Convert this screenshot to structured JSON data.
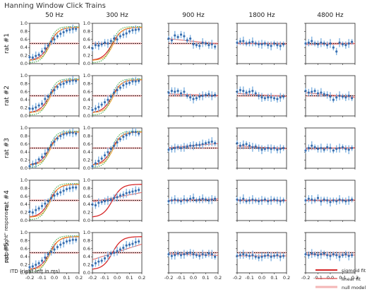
{
  "figure": {
    "title": "Hanning Window Click Trains",
    "xlabel": "ITD (right-left in ms)",
    "ylabel": "prop \"Right\" responses"
  },
  "legend": {
    "sigmoid": {
      "label": "sigmoid fit",
      "color": "#d62728"
    },
    "linear": {
      "label": "linear fit",
      "color": "#e06666"
    },
    "null": {
      "label": "null model",
      "color": "#f4b6b6"
    }
  },
  "colors": {
    "sigmoid": "#d62728",
    "linear": "#e06666",
    "null": "#f7c6c6",
    "orange_fit": "#f0a030",
    "green_fit": "#2ca02c",
    "points": "#3a6fb0",
    "points_light": "#7fb2e0"
  },
  "chart_data": {
    "type": "scatter",
    "title": "Hanning Window Click Trains",
    "xlabel": "ITD (right-left in ms)",
    "ylabel": "prop \"Right\" responses",
    "columns": [
      "50 Hz",
      "300 Hz",
      "900 Hz",
      "1800 Hz",
      "4800 Hz"
    ],
    "rows": [
      "rat #1",
      "rat #2",
      "rat #3",
      "rat #4",
      "rat #5"
    ],
    "x": [
      -0.2,
      -0.175,
      -0.15,
      -0.125,
      -0.1,
      -0.075,
      -0.05,
      -0.025,
      0.0,
      0.025,
      0.05,
      0.075,
      0.1,
      0.125,
      0.15,
      0.175
    ],
    "xlim": [
      -0.2,
      0.2
    ],
    "ylim": [
      0.0,
      1.0
    ],
    "x_ticks": [
      "-0.2",
      "-0.1",
      "0.0",
      "0.1",
      "0.2"
    ],
    "y_ticks": [
      "0.0",
      "0.2",
      "0.4",
      "0.6",
      "0.8",
      "1.0"
    ],
    "reference_line": 0.5,
    "panels": [
      [
        {
          "values": [
            0.16,
            0.15,
            0.19,
            0.22,
            0.3,
            0.38,
            0.45,
            0.55,
            0.6,
            0.68,
            0.74,
            0.78,
            0.82,
            0.84,
            0.86,
            0.86
          ],
          "curves": [
            "sigmoid",
            "orange",
            "green"
          ]
        },
        {
          "values": [
            0.38,
            0.46,
            0.45,
            0.48,
            0.52,
            0.5,
            0.56,
            0.62,
            0.6,
            0.68,
            0.72,
            0.75,
            0.8,
            0.83,
            0.84,
            0.85
          ],
          "curves": [
            "sigmoid",
            "orange",
            "green"
          ]
        },
        {
          "values": [
            0.62,
            0.58,
            0.7,
            0.66,
            0.72,
            0.68,
            0.58,
            0.62,
            0.48,
            0.46,
            0.44,
            0.52,
            0.5,
            0.46,
            0.48,
            0.42
          ],
          "curves": [
            "linear"
          ]
        },
        {
          "values": [
            0.52,
            0.55,
            0.56,
            0.5,
            0.52,
            0.54,
            0.5,
            0.48,
            0.48,
            0.5,
            0.46,
            0.44,
            0.5,
            0.46,
            0.44,
            0.48
          ],
          "curves": [
            "linear"
          ]
        },
        {
          "values": [
            0.5,
            0.52,
            0.56,
            0.5,
            0.48,
            0.52,
            0.5,
            0.46,
            0.5,
            0.4,
            0.3,
            0.52,
            0.48,
            0.46,
            0.5,
            0.54
          ],
          "curves": [
            "linear"
          ]
        }
      ],
      [
        {
          "values": [
            0.18,
            0.18,
            0.21,
            0.26,
            0.3,
            0.42,
            0.48,
            0.58,
            0.64,
            0.72,
            0.78,
            0.8,
            0.84,
            0.86,
            0.88,
            0.87
          ],
          "curves": [
            "sigmoid",
            "orange",
            "green"
          ]
        },
        {
          "values": [
            0.15,
            0.18,
            0.22,
            0.28,
            0.34,
            0.4,
            0.48,
            0.58,
            0.64,
            0.7,
            0.76,
            0.8,
            0.82,
            0.86,
            0.86,
            0.87
          ],
          "curves": [
            "sigmoid",
            "orange",
            "green"
          ]
        },
        {
          "values": [
            0.58,
            0.62,
            0.6,
            0.62,
            0.56,
            0.6,
            0.5,
            0.46,
            0.42,
            0.44,
            0.48,
            0.5,
            0.52,
            0.54,
            0.5,
            0.52
          ],
          "curves": [
            "linear"
          ]
        },
        {
          "values": [
            0.6,
            0.64,
            0.62,
            0.58,
            0.6,
            0.62,
            0.56,
            0.5,
            0.46,
            0.44,
            0.46,
            0.46,
            0.44,
            0.42,
            0.46,
            0.48
          ],
          "curves": [
            "linear"
          ]
        },
        {
          "values": [
            0.62,
            0.58,
            0.6,
            0.62,
            0.56,
            0.58,
            0.54,
            0.52,
            0.48,
            0.4,
            0.46,
            0.5,
            0.48,
            0.46,
            0.5,
            0.44
          ],
          "curves": [
            "linear"
          ]
        }
      ],
      [
        {
          "values": [
            0.05,
            0.1,
            0.12,
            0.22,
            0.28,
            0.36,
            0.46,
            0.58,
            0.66,
            0.74,
            0.8,
            0.84,
            0.86,
            0.88,
            0.88,
            0.86
          ],
          "curves": [
            "sigmoid",
            "orange",
            "green"
          ]
        },
        {
          "values": [
            0.05,
            0.12,
            0.18,
            0.24,
            0.32,
            0.4,
            0.48,
            0.56,
            0.64,
            0.72,
            0.78,
            0.82,
            0.86,
            0.9,
            0.9,
            0.86
          ],
          "curves": [
            "sigmoid",
            "orange",
            "green"
          ]
        },
        {
          "values": [
            0.46,
            0.48,
            0.5,
            0.52,
            0.5,
            0.52,
            0.54,
            0.56,
            0.56,
            0.58,
            0.58,
            0.6,
            0.62,
            0.64,
            0.66,
            0.62
          ],
          "curves": [
            "linear"
          ]
        },
        {
          "values": [
            0.62,
            0.56,
            0.58,
            0.6,
            0.56,
            0.52,
            0.54,
            0.5,
            0.46,
            0.48,
            0.5,
            0.48,
            0.5,
            0.46,
            0.48,
            0.5
          ],
          "curves": [
            "linear"
          ]
        },
        {
          "values": [
            0.44,
            0.5,
            0.56,
            0.52,
            0.48,
            0.5,
            0.46,
            0.52,
            0.5,
            0.44,
            0.48,
            0.5,
            0.52,
            0.48,
            0.46,
            0.5
          ],
          "curves": [
            "linear"
          ]
        }
      ],
      [
        {
          "values": [
            0.22,
            0.2,
            0.26,
            0.3,
            0.36,
            0.42,
            0.48,
            0.56,
            0.62,
            0.66,
            0.7,
            0.74,
            0.78,
            0.8,
            0.82,
            0.82
          ],
          "curves": [
            "sigmoid",
            "orange",
            "green"
          ]
        },
        {
          "values": [
            0.4,
            0.38,
            0.44,
            0.46,
            0.48,
            0.5,
            0.52,
            0.56,
            0.58,
            0.62,
            0.64,
            0.68,
            0.7,
            0.72,
            0.74,
            0.76
          ],
          "curves": [
            "sigmoid",
            "linear"
          ]
        },
        {
          "values": [
            0.48,
            0.5,
            0.52,
            0.5,
            0.48,
            0.52,
            0.5,
            0.54,
            0.56,
            0.5,
            0.52,
            0.54,
            0.52,
            0.5,
            0.52,
            0.54
          ],
          "curves": [
            "linear"
          ]
        },
        {
          "values": [
            0.52,
            0.5,
            0.54,
            0.48,
            0.5,
            0.52,
            0.5,
            0.48,
            0.5,
            0.52,
            0.48,
            0.5,
            0.52,
            0.5,
            0.48,
            0.5
          ],
          "curves": [
            "linear"
          ]
        },
        {
          "values": [
            0.5,
            0.54,
            0.52,
            0.5,
            0.56,
            0.48,
            0.52,
            0.5,
            0.46,
            0.5,
            0.48,
            0.52,
            0.5,
            0.48,
            0.5,
            0.52
          ],
          "curves": [
            "linear"
          ]
        }
      ],
      [
        {
          "values": [
            0.14,
            0.16,
            0.2,
            0.24,
            0.3,
            0.38,
            0.46,
            0.52,
            0.58,
            0.64,
            0.7,
            0.74,
            0.78,
            0.8,
            0.82,
            0.82
          ],
          "curves": [
            "sigmoid",
            "orange",
            "green"
          ]
        },
        {
          "values": [
            0.18,
            0.24,
            0.28,
            0.3,
            0.36,
            0.42,
            0.48,
            0.5,
            0.54,
            0.58,
            0.62,
            0.68,
            0.7,
            0.72,
            0.76,
            0.78
          ],
          "curves": [
            "sigmoid",
            "linear"
          ]
        },
        {
          "values": [
            0.46,
            0.42,
            0.44,
            0.48,
            0.44,
            0.46,
            0.48,
            0.5,
            0.46,
            0.44,
            0.42,
            0.46,
            0.44,
            0.48,
            0.46,
            0.4
          ],
          "curves": [
            "linear"
          ]
        },
        {
          "values": [
            0.42,
            0.44,
            0.46,
            0.44,
            0.42,
            0.44,
            0.4,
            0.38,
            0.4,
            0.42,
            0.44,
            0.4,
            0.42,
            0.44,
            0.4,
            0.42
          ],
          "curves": [
            "linear"
          ]
        },
        {
          "values": [
            0.46,
            0.44,
            0.48,
            0.46,
            0.44,
            0.46,
            0.48,
            0.44,
            0.42,
            0.46,
            0.44,
            0.4,
            0.44,
            0.46,
            0.42,
            0.44
          ],
          "curves": [
            "linear"
          ]
        }
      ]
    ]
  }
}
